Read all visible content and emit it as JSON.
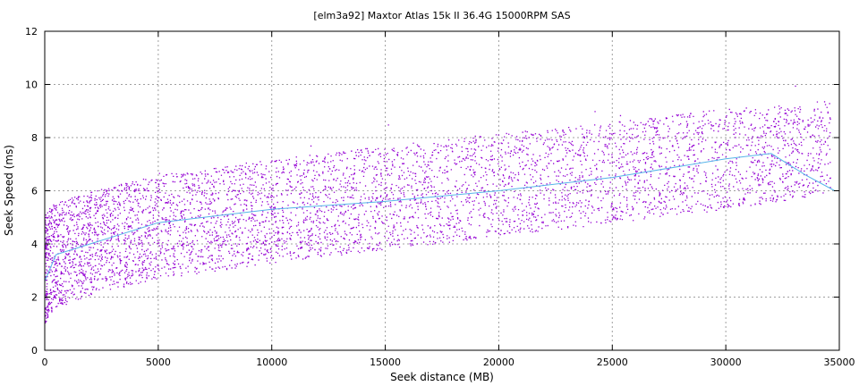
{
  "chart_data": {
    "type": "scatter",
    "title": "[elm3a92] Maxtor Atlas 15k II 36.4G 15000RPM SAS",
    "xlabel": "Seek distance (MB)",
    "ylabel": "Seek Speed (ms)",
    "xlim": [
      0,
      35000
    ],
    "ylim": [
      0,
      12
    ],
    "xticks": [
      0,
      5000,
      10000,
      15000,
      20000,
      25000,
      30000,
      35000
    ],
    "yticks": [
      0,
      2,
      4,
      6,
      8,
      10,
      12
    ],
    "xtick_labels": [
      "0",
      "5000",
      "10000",
      "15000",
      "20000",
      "25000",
      "30000",
      "35000"
    ],
    "ytick_labels": [
      "0",
      "2",
      "4",
      "6",
      "8",
      "10",
      "12"
    ],
    "grid": true,
    "legend": "none",
    "colors": {
      "points": "#9400d3",
      "trend": "#56b4e9",
      "grid": "#a0a0a0"
    },
    "series": [
      {
        "description_lower_edge": {
          "x": [
            0,
            500,
            2000,
            5000,
            10000,
            15000,
            20000,
            25000,
            30000,
            34500
          ],
          "y": [
            1.0,
            1.6,
            2.1,
            2.7,
            3.3,
            3.8,
            4.3,
            4.8,
            5.3,
            5.9
          ]
        },
        "description_upper_edge": {
          "x": [
            0,
            500,
            2000,
            5000,
            10000,
            15000,
            20000,
            25000,
            30000,
            34500
          ],
          "y": [
            5.2,
            5.6,
            6.0,
            6.6,
            7.2,
            7.7,
            8.2,
            8.6,
            9.1,
            9.4
          ]
        }
      },
      {
        "trend": {
          "x": [
            0,
            500,
            2000,
            5000,
            10000,
            15000,
            20000,
            25000,
            30000,
            32000,
            33500,
            34800
          ],
          "y": [
            2.6,
            3.6,
            4.0,
            4.8,
            5.3,
            5.6,
            6.0,
            6.5,
            7.2,
            7.4,
            6.6,
            6.0
          ]
        }
      }
    ]
  }
}
